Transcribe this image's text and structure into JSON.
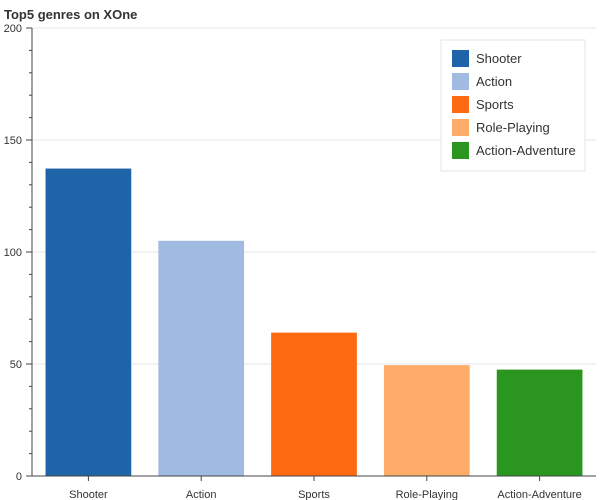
{
  "chart_data": {
    "type": "bar",
    "title": "Top5 genres on XOne",
    "xlabel": "",
    "ylabel": "",
    "categories": [
      "Shooter",
      "Action",
      "Sports",
      "Role-Playing",
      "Action-Adventure"
    ],
    "values": [
      137.25,
      105,
      64,
      49.5,
      47.5
    ],
    "colors": [
      "#1f63a8",
      "#a1bae2",
      "#fd6a11",
      "#feac6a",
      "#2a961f"
    ],
    "ylim": [
      0,
      200
    ],
    "y_ticks": [
      0,
      50,
      100,
      150,
      200
    ],
    "y_minor_step": 10,
    "grid": "horizontal",
    "legend": {
      "placement": "top-right",
      "entries": [
        "Shooter",
        "Action",
        "Sports",
        "Role-Playing",
        "Action-Adventure"
      ]
    }
  }
}
